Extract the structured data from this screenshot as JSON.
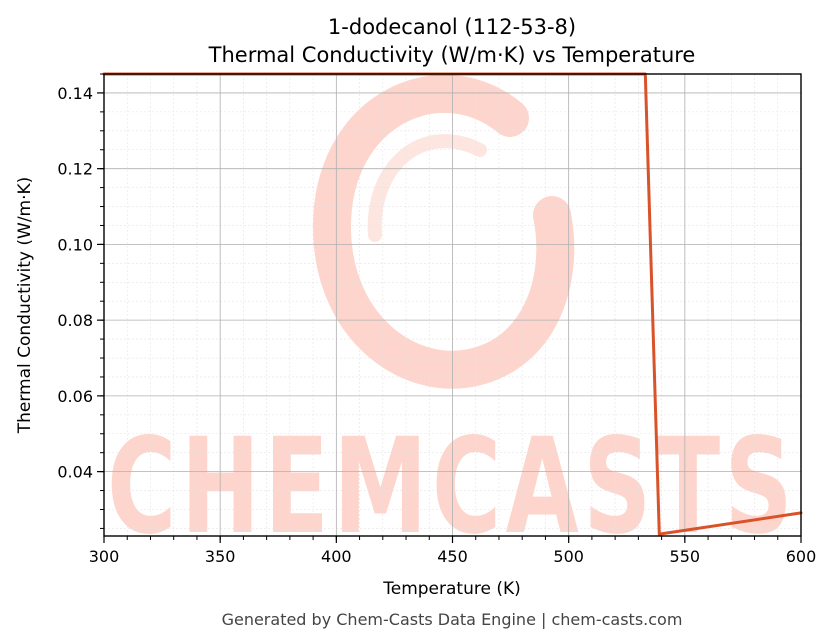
{
  "chart_data": {
    "type": "line",
    "title": "1-dodecanol (112-53-8)",
    "subtitle": "Thermal Conductivity (W/m·K) vs Temperature",
    "xlabel": "Temperature (K)",
    "ylabel": "Thermal Conductivity (W/m·K)",
    "xlim": [
      300,
      600
    ],
    "ylim": [
      0.023,
      0.145
    ],
    "xticks": [
      300,
      350,
      400,
      450,
      500,
      550,
      600
    ],
    "yticks": [
      0.04,
      0.06,
      0.08,
      0.1,
      0.12,
      0.14
    ],
    "xtick_labels": [
      "300",
      "350",
      "400",
      "450",
      "500",
      "550",
      "600"
    ],
    "ytick_labels": [
      "0.04",
      "0.06",
      "0.08",
      "0.10",
      "0.12",
      "0.14"
    ],
    "grid": true,
    "series": [
      {
        "color": "#d9532a",
        "x": [
          300,
          533,
          539,
          600
        ],
        "y": [
          0.145,
          0.145,
          0.0235,
          0.0291
        ]
      }
    ]
  },
  "footer": "Generated by Chem-Casts Data Engine | chem-casts.com",
  "watermark": "CHEMCASTS",
  "colors": {
    "line": "#d9532a",
    "watermark": "#fdd5cc"
  }
}
